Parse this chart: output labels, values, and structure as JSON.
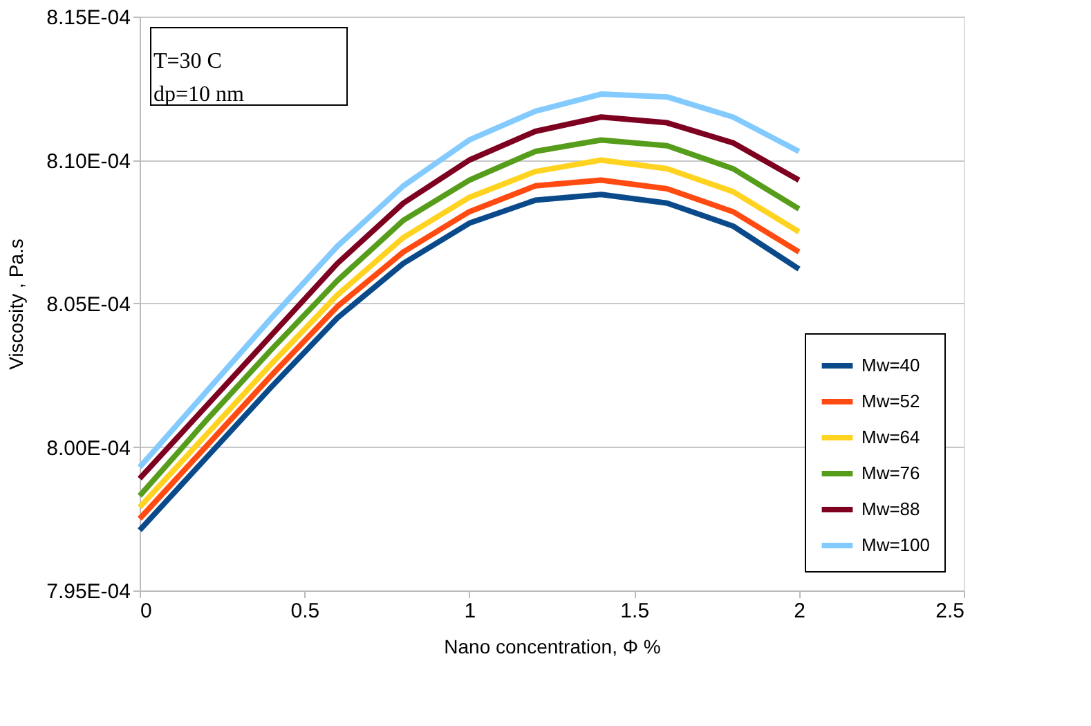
{
  "chart_data": {
    "type": "line",
    "xlabel": "Nano concentration, Φ %",
    "ylabel": "Viscosity , Pa.s",
    "x": [
      0,
      0.2,
      0.4,
      0.6,
      0.8,
      1.0,
      1.2,
      1.4,
      1.6,
      1.8,
      2.0
    ],
    "series": [
      {
        "name": "Mw=40",
        "color": "#0a4a8a",
        "values": [
          0.0007971,
          0.0007996,
          0.0008021,
          0.0008045,
          0.0008064,
          0.0008078,
          0.0008086,
          0.0008088,
          0.0008085,
          0.0008077,
          0.0008062
        ]
      },
      {
        "name": "Mw=52",
        "color": "#ff4b12",
        "values": [
          0.0007975,
          0.0008,
          0.0008025,
          0.0008049,
          0.0008068,
          0.0008082,
          0.0008091,
          0.0008093,
          0.000809,
          0.0008082,
          0.0008068
        ]
      },
      {
        "name": "Mw=64",
        "color": "#ffd320",
        "values": [
          0.0007979,
          0.0008004,
          0.0008029,
          0.0008053,
          0.0008073,
          0.0008087,
          0.0008096,
          0.00081,
          0.0008097,
          0.0008089,
          0.0008075
        ]
      },
      {
        "name": "Mw=76",
        "color": "#579d1c",
        "values": [
          0.0007983,
          0.0008009,
          0.0008034,
          0.0008058,
          0.0008079,
          0.0008093,
          0.0008103,
          0.0008107,
          0.0008105,
          0.0008097,
          0.0008083
        ]
      },
      {
        "name": "Mw=88",
        "color": "#7e0021",
        "values": [
          0.0007989,
          0.0008014,
          0.0008039,
          0.0008064,
          0.0008085,
          0.00081,
          0.000811,
          0.0008115,
          0.0008113,
          0.0008106,
          0.0008093
        ]
      },
      {
        "name": "Mw=100",
        "color": "#83caff",
        "values": [
          0.0007993,
          0.0008019,
          0.0008045,
          0.000807,
          0.0008091,
          0.0008107,
          0.0008117,
          0.0008123,
          0.0008122,
          0.0008115,
          0.0008103
        ]
      }
    ],
    "xlim": [
      0,
      2.5
    ],
    "xticks": [
      0,
      0.5,
      1,
      1.5,
      2,
      2.5
    ],
    "ylim": [
      0.000795,
      0.000815
    ],
    "yticks": [
      {
        "value": 0.000795,
        "label": "7.95E-04"
      },
      {
        "value": 0.0008,
        "label": "8.00E-04"
      },
      {
        "value": 0.000805,
        "label": "8.05E-04"
      },
      {
        "value": 0.00081,
        "label": "8.10E-04"
      },
      {
        "value": 0.000815,
        "label": "8.15E-04"
      }
    ],
    "annotations": [
      "T=30 C",
      "dp=10 nm"
    ],
    "grid": "y",
    "legend": "bottom right",
    "marker": "none",
    "line_style": "solid"
  }
}
